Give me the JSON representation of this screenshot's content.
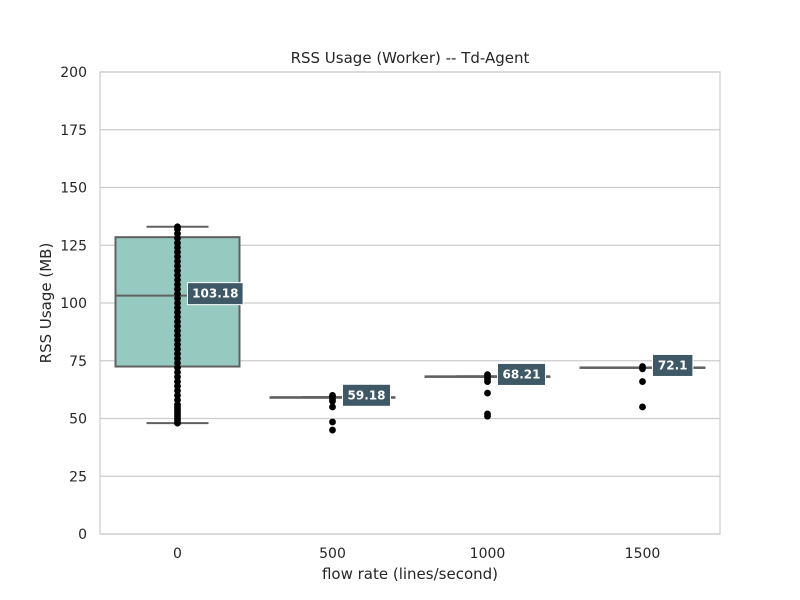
{
  "chart_data": {
    "type": "box",
    "title": "RSS Usage (Worker) -- Td-Agent",
    "xlabel": "flow rate (lines/second)",
    "ylabel": "RSS Usage (MB)",
    "categories": [
      "0",
      "500",
      "1000",
      "1500"
    ],
    "ylim": [
      0,
      200
    ],
    "yticks": [
      0,
      25,
      50,
      75,
      100,
      125,
      150,
      175,
      200
    ],
    "grid": true,
    "box_color": "#96cac1",
    "label_box_color": "#3e5866",
    "boxes": [
      {
        "category": "0",
        "whisker_low": 48,
        "q1": 72.5,
        "median": 103.18,
        "q3": 128.5,
        "whisker_high": 133,
        "median_label": "103.18",
        "outliers": [
          48,
          49,
          50,
          51,
          52,
          53,
          54,
          55,
          56,
          58,
          60,
          62,
          64,
          66,
          68,
          70,
          72,
          74,
          76,
          78,
          80,
          82,
          84,
          86,
          88,
          90,
          92,
          94,
          96,
          98,
          100,
          102,
          104,
          106,
          108,
          110,
          112,
          114,
          116,
          118,
          120,
          122,
          124,
          126,
          128,
          130,
          132,
          133
        ]
      },
      {
        "category": "500",
        "whisker_low": 59.18,
        "q1": 59.18,
        "median": 59.18,
        "q3": 59.18,
        "whisker_high": 59.18,
        "median_label": "59.18",
        "outliers": [
          45,
          48.5,
          55,
          57.5,
          58.5,
          59.5,
          60
        ]
      },
      {
        "category": "1000",
        "whisker_low": 68.21,
        "q1": 68.21,
        "median": 68.21,
        "q3": 68.21,
        "whisker_high": 68.21,
        "median_label": "68.21",
        "outliers": [
          51,
          52,
          61,
          66,
          67,
          68,
          69
        ]
      },
      {
        "category": "1500",
        "whisker_low": 72.1,
        "q1": 72.1,
        "median": 72.1,
        "q3": 72.1,
        "whisker_high": 72.1,
        "median_label": "72.1",
        "outliers": [
          55,
          66,
          71.5,
          72.5
        ]
      }
    ]
  }
}
